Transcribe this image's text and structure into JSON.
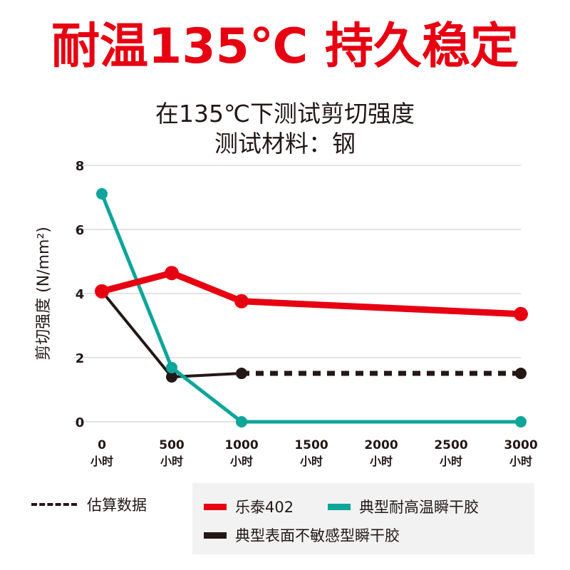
{
  "header": {
    "title": "耐温135℃ 持久稳定",
    "subtitle_line1": "在135℃下测试剪切强度",
    "subtitle_line2": "测试材料：钢"
  },
  "chart_data": {
    "type": "line",
    "title": "在135℃下测试剪切强度",
    "ylabel": "剪切强度 (N/mm²)",
    "xlabel": "",
    "ylim": [
      0,
      8
    ],
    "xlim": [
      0,
      3000
    ],
    "yticks": [
      0,
      2,
      4,
      6,
      8
    ],
    "xticks": [
      0,
      500,
      1000,
      1500,
      2000,
      2500,
      3000
    ],
    "xtick_labels": [
      "0",
      "500",
      "1000",
      "1500",
      "2000",
      "2500",
      "3000"
    ],
    "xtick_unit": "小时",
    "grid": true,
    "series": [
      {
        "name": "乐泰402",
        "color": "#e60012",
        "x": [
          0,
          500,
          1000,
          3000
        ],
        "y": [
          4.07,
          4.64,
          3.76,
          3.36
        ],
        "dashed_from_index": null
      },
      {
        "name": "典型耐高温瞬干胶",
        "color": "#0ea59a",
        "x": [
          0,
          500,
          1000,
          3000
        ],
        "y": [
          7.11,
          1.69,
          0,
          0
        ],
        "dashed_from_index": null
      },
      {
        "name": "典型表面不敏感型瞬干胶",
        "color": "#231815",
        "x": [
          0,
          500,
          1000,
          3000
        ],
        "y": [
          4.07,
          1.4,
          1.51,
          1.51
        ],
        "dashed_from_index": 2
      }
    ],
    "annotation": "估算数据",
    "legend_placement": "bottom"
  }
}
